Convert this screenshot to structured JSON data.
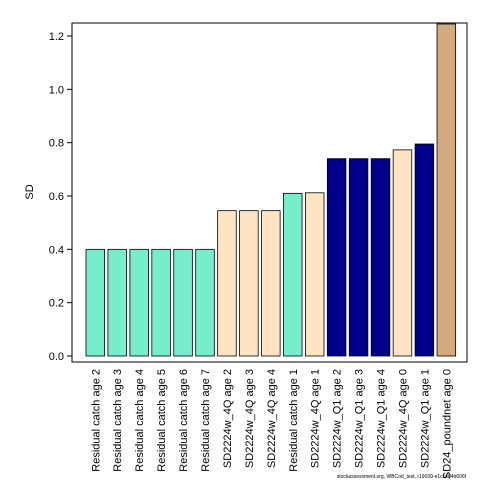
{
  "chart_data": {
    "type": "bar",
    "ylabel": "SD",
    "xlabel": "",
    "title": "",
    "ylim": [
      0,
      1.25
    ],
    "yticks": [
      0.0,
      0.2,
      0.4,
      0.6,
      0.8,
      1.0,
      1.2
    ],
    "ytick_labels": [
      "0.0",
      "0.2",
      "0.4",
      "0.6",
      "0.8",
      "1.0",
      "1.2"
    ],
    "grid": false,
    "legend": "none",
    "categories": [
      "Residual catch age 2",
      "Residual catch age 3",
      "Residual catch age 4",
      "Residual catch age 5",
      "Residual catch age 6",
      "Residual catch age 7",
      "SD2224w_4Q age 2",
      "SD2224w_4Q age 3",
      "SD2224w_4Q age 4",
      "Residual catch age 1",
      "SD2224w_4Q age 1",
      "SD2224w_Q1 age 2",
      "SD2224w_Q1 age 3",
      "SD2224w_Q1 age 4",
      "SD2224w_4Q age 0",
      "SD2224w_Q1 age 1",
      "SD24_poundnet age 0"
    ],
    "values": [
      0.4,
      0.4,
      0.4,
      0.4,
      0.4,
      0.4,
      0.545,
      0.545,
      0.545,
      0.61,
      0.612,
      0.74,
      0.74,
      0.74,
      0.773,
      0.795,
      1.245
    ],
    "colors": [
      "#76eecc",
      "#76eecc",
      "#76eecc",
      "#76eecc",
      "#76eecc",
      "#76eecc",
      "#ffe4c4",
      "#ffe4c4",
      "#ffe4c4",
      "#76eecc",
      "#ffe4c4",
      "#00008b",
      "#00008b",
      "#00008b",
      "#ffe4c4",
      "#00008b",
      "#d2aa7d"
    ]
  },
  "footer": "stockassessment.org, WBCod_test, r19039-e1cc464b606f"
}
